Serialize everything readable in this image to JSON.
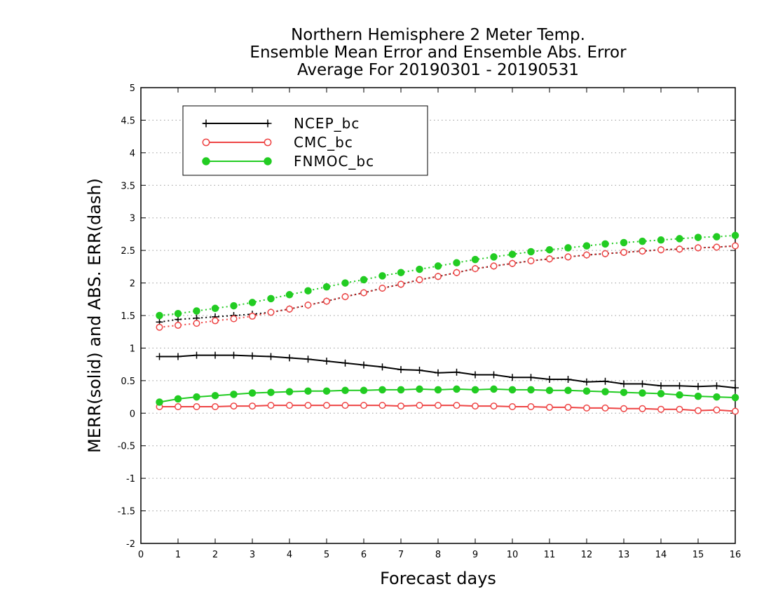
{
  "chart_data": {
    "type": "line",
    "title_lines": [
      "Northern Hemisphere 2 Meter Temp.",
      "Ensemble Mean Error and Ensemble Abs. Error",
      "Average For 20190301 - 20190531"
    ],
    "xlabel": "Forecast days",
    "ylabel": "MERR(solid) and ABS. ERR(dash)",
    "xlim": [
      0,
      16
    ],
    "ylim": [
      -2,
      5
    ],
    "x_ticks": [
      0,
      1,
      2,
      3,
      4,
      5,
      6,
      7,
      8,
      9,
      10,
      11,
      12,
      13,
      14,
      15,
      16
    ],
    "y_ticks": [
      -2,
      -1.5,
      -1,
      -0.5,
      0,
      0.5,
      1,
      1.5,
      2,
      2.5,
      3,
      3.5,
      4,
      4.5,
      5
    ],
    "grid": "horizontal-dotted",
    "legend_position": "top-left",
    "x": [
      0.5,
      1,
      1.5,
      2,
      2.5,
      3,
      3.5,
      4,
      4.5,
      5,
      5.5,
      6,
      6.5,
      7,
      7.5,
      8,
      8.5,
      9,
      9.5,
      10,
      10.5,
      11,
      11.5,
      12,
      12.5,
      13,
      13.5,
      14,
      14.5,
      15,
      15.5,
      16
    ],
    "series": [
      {
        "name": "NCEP_bc",
        "color": "#000000",
        "marker": "plus",
        "merr": [
          0.87,
          0.87,
          0.89,
          0.89,
          0.89,
          0.88,
          0.87,
          0.85,
          0.83,
          0.8,
          0.77,
          0.74,
          0.71,
          0.67,
          0.66,
          0.62,
          0.63,
          0.59,
          0.59,
          0.55,
          0.55,
          0.52,
          0.52,
          0.48,
          0.49,
          0.45,
          0.45,
          0.42,
          0.42,
          0.41,
          0.42,
          0.39
        ],
        "abs_err": [
          1.4,
          1.44,
          1.46,
          1.48,
          1.5,
          1.52,
          1.55,
          1.6,
          1.66,
          1.72,
          1.79,
          1.85,
          1.92,
          1.98,
          2.05,
          2.1,
          2.16,
          2.22,
          2.26,
          2.3,
          2.34,
          2.37,
          2.4,
          2.43,
          2.45,
          2.47,
          2.49,
          2.51,
          2.52,
          2.54,
          2.55,
          2.57
        ]
      },
      {
        "name": "CMC_bc",
        "color": "#ee4444",
        "marker": "open-circle",
        "merr": [
          0.1,
          0.1,
          0.1,
          0.1,
          0.11,
          0.11,
          0.12,
          0.12,
          0.12,
          0.12,
          0.12,
          0.12,
          0.12,
          0.11,
          0.12,
          0.12,
          0.12,
          0.11,
          0.11,
          0.1,
          0.1,
          0.09,
          0.09,
          0.08,
          0.08,
          0.07,
          0.07,
          0.06,
          0.06,
          0.04,
          0.05,
          0.03
        ],
        "abs_err": [
          1.32,
          1.35,
          1.38,
          1.42,
          1.45,
          1.49,
          1.55,
          1.6,
          1.66,
          1.72,
          1.79,
          1.85,
          1.92,
          1.98,
          2.05,
          2.1,
          2.16,
          2.22,
          2.26,
          2.3,
          2.34,
          2.37,
          2.4,
          2.43,
          2.45,
          2.47,
          2.49,
          2.51,
          2.52,
          2.54,
          2.55,
          2.57
        ]
      },
      {
        "name": "FNMOC_bc",
        "color": "#22cc22",
        "marker": "filled-circle",
        "merr": [
          0.17,
          0.22,
          0.25,
          0.27,
          0.29,
          0.31,
          0.32,
          0.33,
          0.34,
          0.34,
          0.35,
          0.35,
          0.36,
          0.36,
          0.37,
          0.36,
          0.37,
          0.36,
          0.37,
          0.36,
          0.36,
          0.35,
          0.35,
          0.34,
          0.33,
          0.32,
          0.31,
          0.3,
          0.28,
          0.26,
          0.25,
          0.24
        ],
        "abs_err": [
          1.5,
          1.53,
          1.57,
          1.61,
          1.65,
          1.7,
          1.76,
          1.82,
          1.88,
          1.94,
          2.0,
          2.05,
          2.11,
          2.16,
          2.21,
          2.26,
          2.31,
          2.36,
          2.4,
          2.44,
          2.48,
          2.51,
          2.54,
          2.57,
          2.6,
          2.62,
          2.64,
          2.66,
          2.68,
          2.7,
          2.71,
          2.73
        ]
      }
    ]
  }
}
